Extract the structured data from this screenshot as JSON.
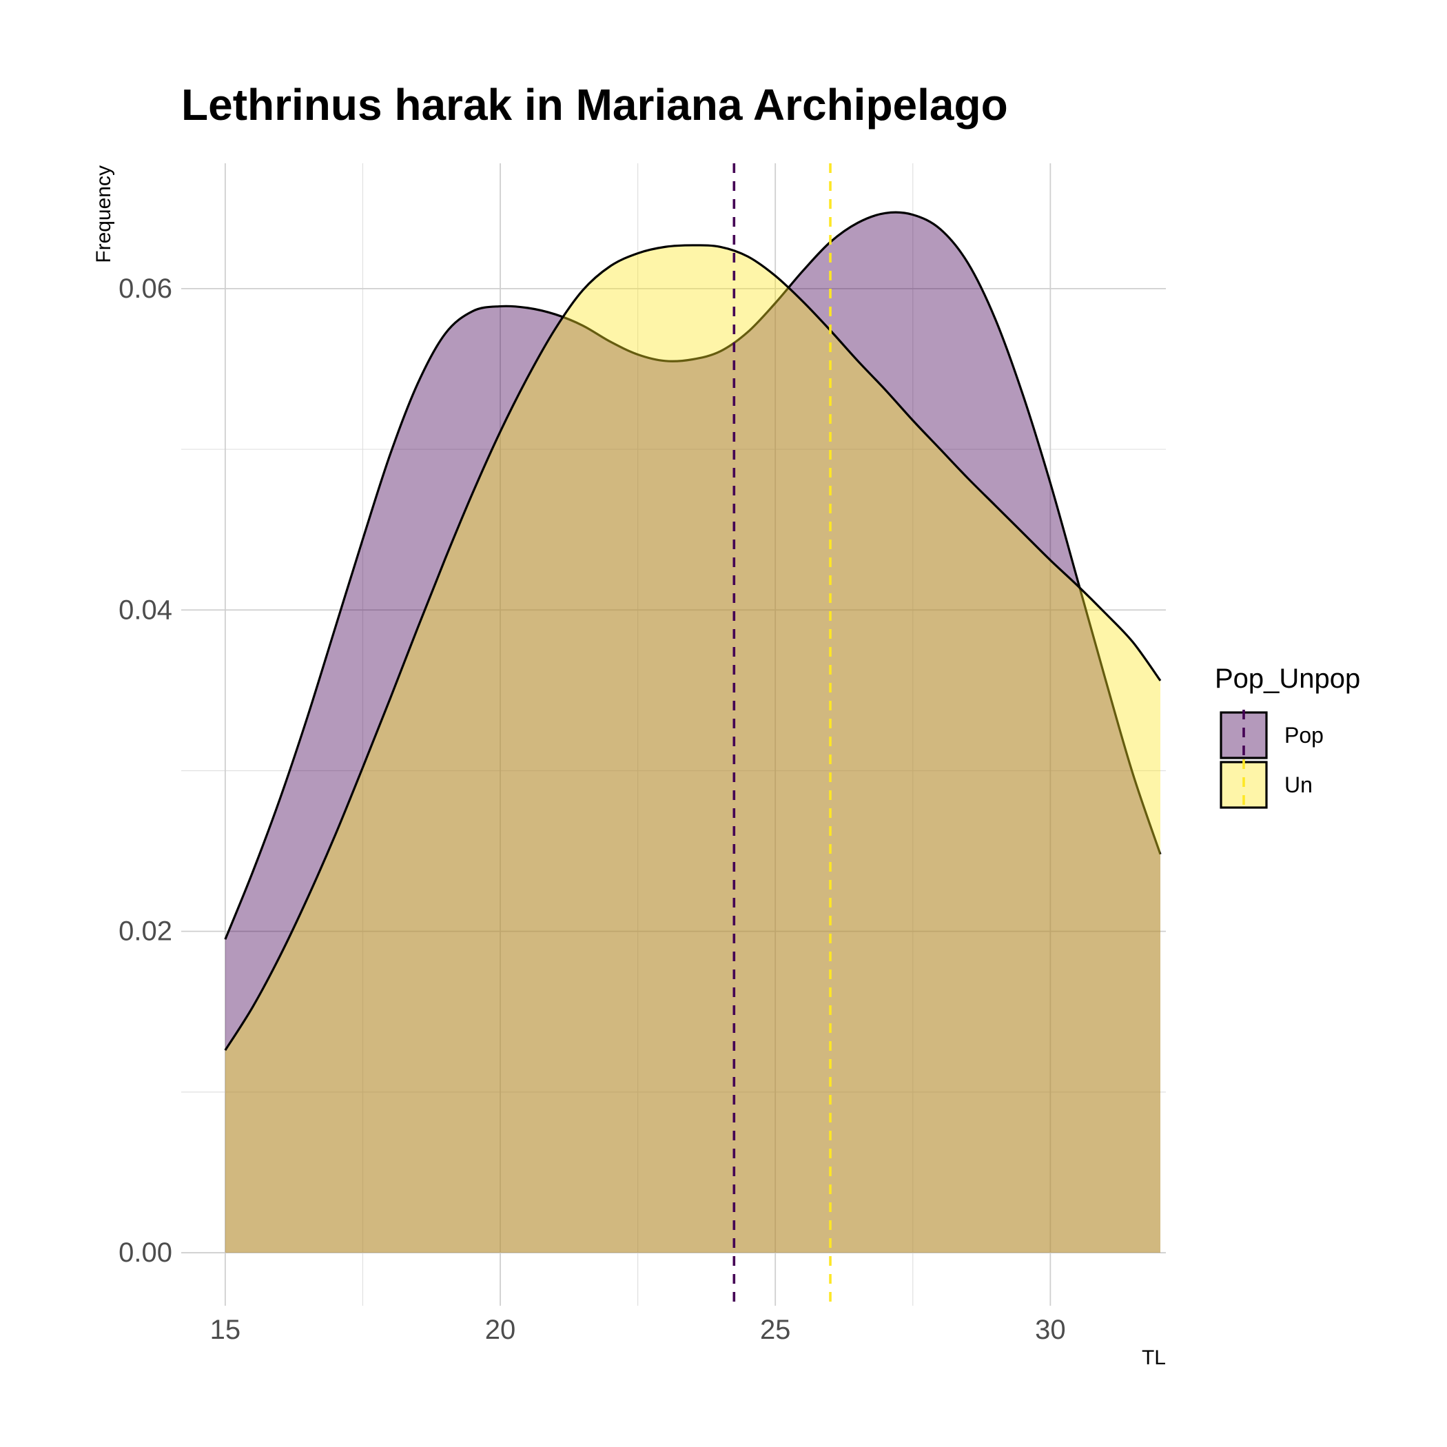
{
  "chart_data": {
    "type": "area",
    "title": "Lethrinus harak in Mariana Archipelago",
    "xlabel": "TL",
    "ylabel": "Frequency",
    "xlim": [
      14.2,
      32.1
    ],
    "ylim": [
      -0.0033,
      0.0678
    ],
    "xticks": [
      {
        "value": 15,
        "label": "15"
      },
      {
        "value": 20,
        "label": "20"
      },
      {
        "value": 25,
        "label": "25"
      },
      {
        "value": 30,
        "label": "30"
      }
    ],
    "yticks": [
      {
        "value": 0.0,
        "label": "0.00"
      },
      {
        "value": 0.02,
        "label": "0.02"
      },
      {
        "value": 0.04,
        "label": "0.04"
      },
      {
        "value": 0.06,
        "label": "0.06"
      }
    ],
    "grid": true,
    "legend": {
      "title": "Pop_Unpop",
      "position": "right"
    },
    "series": [
      {
        "name": "Pop",
        "fill": "#440154",
        "mean_line_color": "#440154",
        "mean": 24.25,
        "x": [
          15,
          15.5,
          16,
          16.5,
          17,
          17.5,
          18,
          18.5,
          19,
          19.5,
          20,
          20.5,
          21,
          21.5,
          22,
          22.5,
          23,
          23.5,
          24,
          24.5,
          25,
          25.5,
          26,
          26.5,
          27,
          27.5,
          28,
          28.5,
          29,
          29.5,
          30,
          30.5,
          31,
          31.5,
          32
        ],
        "y": [
          0.0195,
          0.0237,
          0.0283,
          0.0334,
          0.0389,
          0.0444,
          0.0497,
          0.0541,
          0.0572,
          0.0586,
          0.0589,
          0.0588,
          0.0584,
          0.0577,
          0.0567,
          0.0559,
          0.0555,
          0.0556,
          0.0561,
          0.0573,
          0.0591,
          0.0611,
          0.0629,
          0.0641,
          0.0647,
          0.0646,
          0.0637,
          0.0616,
          0.0581,
          0.0534,
          0.0479,
          0.0418,
          0.0357,
          0.0298,
          0.0248
        ]
      },
      {
        "name": "Un",
        "fill": "#fde725",
        "mean_line_color": "#fde725",
        "mean": 26.0,
        "x": [
          15,
          15.5,
          16,
          16.5,
          17,
          17.5,
          18,
          18.5,
          19,
          19.5,
          20,
          20.5,
          21,
          21.5,
          22,
          22.5,
          23,
          23.5,
          24,
          24.5,
          25,
          25.5,
          26,
          26.5,
          27,
          27.5,
          28,
          28.5,
          29,
          29.5,
          30,
          30.5,
          31,
          31.5,
          32
        ],
        "y": [
          0.0126,
          0.0153,
          0.0185,
          0.0221,
          0.026,
          0.0302,
          0.0345,
          0.0389,
          0.0432,
          0.0473,
          0.0511,
          0.0545,
          0.0575,
          0.0599,
          0.0614,
          0.0622,
          0.0626,
          0.0627,
          0.0626,
          0.062,
          0.0608,
          0.0592,
          0.0574,
          0.0555,
          0.0537,
          0.0518,
          0.05,
          0.0482,
          0.0465,
          0.0448,
          0.0431,
          0.0415,
          0.0398,
          0.038,
          0.0356
        ]
      }
    ]
  }
}
